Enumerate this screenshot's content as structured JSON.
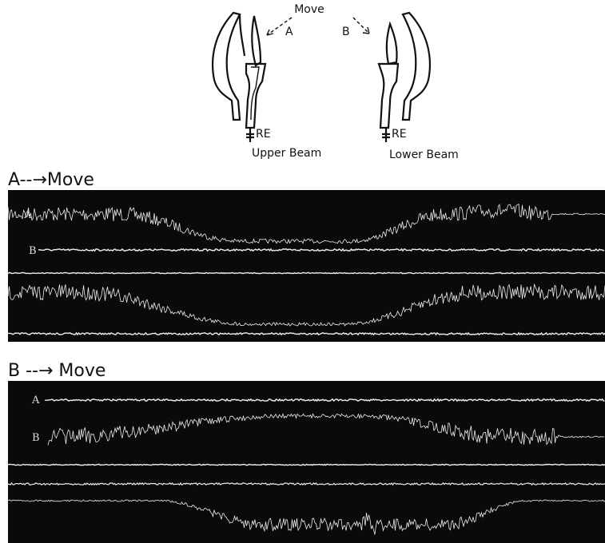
{
  "diagram": {
    "move_label": "Move",
    "arrow_a": "A",
    "arrow_b": "B",
    "left_electrode": "RE",
    "left_caption": "Upper Beam",
    "right_electrode": "RE",
    "right_caption": "Lower Beam"
  },
  "panels": [
    {
      "title": "A--→Move",
      "trace_a": "A",
      "trace_b": "B"
    },
    {
      "title": "B --→ Move",
      "trace_a": "A",
      "trace_b": "B"
    }
  ]
}
